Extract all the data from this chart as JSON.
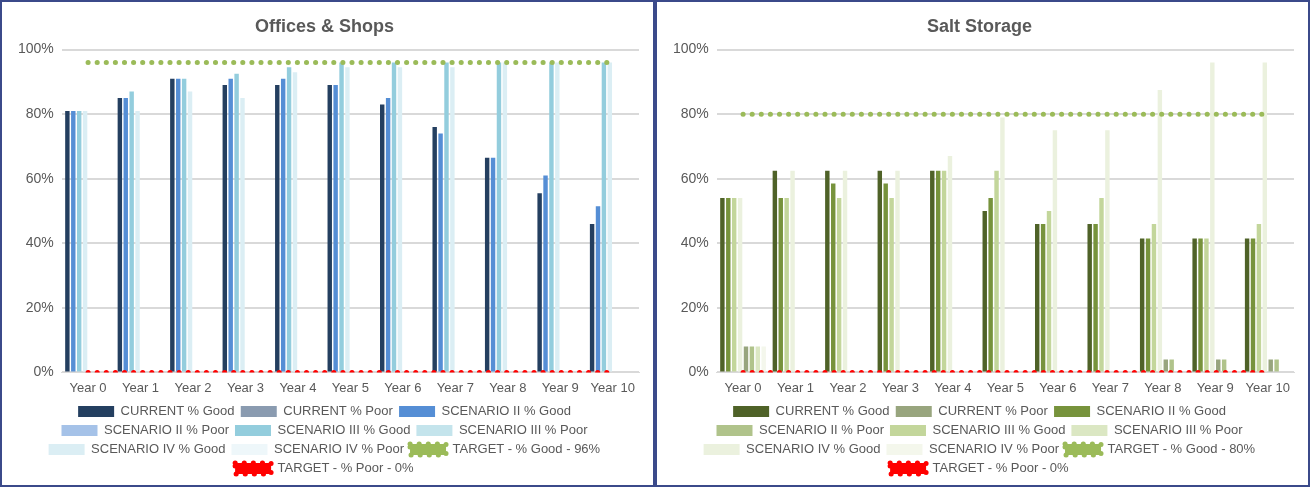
{
  "chart_data": [
    {
      "type": "bar",
      "title": "Offices & Shops",
      "categories": [
        "Year 0",
        "Year 1",
        "Year 2",
        "Year 3",
        "Year 4",
        "Year 5",
        "Year 6",
        "Year 7",
        "Year 8",
        "Year 9",
        "Year 10"
      ],
      "ylim": [
        0,
        100
      ],
      "yticks": [
        {
          "value": 0,
          "label": "0%"
        },
        {
          "value": 20,
          "label": "20%"
        },
        {
          "value": 40,
          "label": "40%"
        },
        {
          "value": 60,
          "label": "60%"
        },
        {
          "value": 80,
          "label": "80%"
        },
        {
          "value": 100,
          "label": "100%"
        }
      ],
      "grid": "y",
      "legend": "bottom",
      "series": [
        {
          "name": "CURRENT % Good",
          "color": "#243f60",
          "values": [
            81,
            85,
            91,
            89,
            89,
            89,
            83,
            76,
            66.5,
            55.5,
            46
          ]
        },
        {
          "name": "SCENARIO II % Good",
          "color": "#558ed5",
          "values": [
            81,
            85,
            91,
            91,
            91,
            89,
            85,
            74,
            66.5,
            61,
            51.5
          ]
        },
        {
          "name": "SCENARIO III % Good",
          "color": "#93cddd",
          "values": [
            81,
            87,
            91,
            92.5,
            94.5,
            96,
            96,
            96,
            96,
            96,
            96
          ]
        },
        {
          "name": "SCENARIO IV % Good",
          "color": "#dbeef4",
          "values": [
            81,
            81,
            87,
            85,
            93,
            94.5,
            94.5,
            94.5,
            96,
            96,
            96
          ]
        },
        {
          "name": "TARGET - % Good - 96%",
          "type": "line",
          "line_style": "dotted",
          "marker": "none",
          "color": "#9bbb59",
          "values": [
            96,
            96,
            96,
            96,
            96,
            96,
            96,
            96,
            96,
            96,
            96
          ]
        },
        {
          "name": "CURRENT % Poor",
          "color": "#8a9bb0",
          "values": [
            0,
            0,
            0,
            0,
            0,
            0,
            0,
            0,
            0,
            0,
            0
          ]
        },
        {
          "name": "SCENARIO II % Poor",
          "color": "#a5c2e8",
          "values": [
            0,
            0,
            0,
            0,
            0,
            0,
            0,
            0,
            0,
            0,
            0
          ]
        },
        {
          "name": "SCENARIO III % Poor",
          "color": "#c4e4ec",
          "values": [
            0,
            0,
            0,
            0,
            0,
            0,
            0,
            0,
            0,
            0,
            0
          ]
        },
        {
          "name": "SCENARIO IV % Poor",
          "color": "#eef7fa",
          "values": [
            0,
            0,
            0,
            0,
            0,
            0,
            0,
            0,
            0,
            0,
            0
          ]
        },
        {
          "name": "TARGET - % Poor - 0%",
          "type": "line",
          "line_style": "dotted",
          "marker": "none",
          "color": "#ff0000",
          "values": [
            0,
            0,
            0,
            0,
            0,
            0,
            0,
            0,
            0,
            0,
            0
          ]
        }
      ]
    },
    {
      "type": "bar",
      "title": "Salt Storage",
      "categories": [
        "Year 0",
        "Year 1",
        "Year 2",
        "Year 3",
        "Year 4",
        "Year 5",
        "Year 6",
        "Year 7",
        "Year 8",
        "Year 9",
        "Year 10"
      ],
      "ylim": [
        0,
        100
      ],
      "yticks": [
        {
          "value": 0,
          "label": "0%"
        },
        {
          "value": 20,
          "label": "20%"
        },
        {
          "value": 40,
          "label": "40%"
        },
        {
          "value": 60,
          "label": "60%"
        },
        {
          "value": 80,
          "label": "80%"
        },
        {
          "value": 100,
          "label": "100%"
        }
      ],
      "grid": "y",
      "legend": "bottom",
      "series": [
        {
          "name": "CURRENT % Good",
          "color": "#4f6228",
          "values": [
            54,
            62.5,
            62.5,
            62.5,
            62.5,
            50,
            46,
            46,
            41.5,
            41.5,
            41.5
          ]
        },
        {
          "name": "SCENARIO II % Good",
          "color": "#77933c",
          "values": [
            54,
            54,
            58.5,
            58.5,
            62.5,
            54,
            46,
            46,
            41.5,
            41.5,
            41.5
          ]
        },
        {
          "name": "SCENARIO III % Good",
          "color": "#c3d69b",
          "values": [
            54,
            54,
            54,
            54,
            62.5,
            62.5,
            50,
            54,
            46,
            41.5,
            46
          ]
        },
        {
          "name": "SCENARIO IV % Good",
          "color": "#ebf1de",
          "values": [
            54,
            62.5,
            62.5,
            62.5,
            67,
            79,
            75,
            75,
            87.5,
            96,
            96
          ]
        },
        {
          "name": "TARGET - % Good - 80%",
          "type": "line",
          "line_style": "dotted",
          "marker": "none",
          "color": "#9bbb59",
          "values": [
            80,
            80,
            80,
            80,
            80,
            80,
            80,
            80,
            80,
            80,
            80
          ]
        },
        {
          "name": "CURRENT % Poor",
          "color": "#98a57e",
          "values": [
            8,
            0,
            0,
            0,
            0,
            0,
            0,
            0,
            4,
            4,
            4
          ]
        },
        {
          "name": "SCENARIO II % Poor",
          "color": "#b0c38b",
          "values": [
            8,
            0,
            0,
            0,
            0,
            0,
            0,
            0,
            4,
            4,
            4
          ]
        },
        {
          "name": "SCENARIO III % Poor",
          "color": "#dbe7c3",
          "values": [
            8,
            0,
            0,
            0,
            0,
            0,
            0,
            0,
            0,
            0,
            0
          ]
        },
        {
          "name": "SCENARIO IV % Poor",
          "color": "#f4f7ec",
          "values": [
            8,
            0,
            0,
            0,
            0,
            0,
            0,
            0,
            0,
            0,
            0
          ]
        },
        {
          "name": "TARGET - % Poor - 0%",
          "type": "line",
          "line_style": "dotted",
          "marker": "none",
          "color": "#ff0000",
          "values": [
            0,
            0,
            0,
            0,
            0,
            0,
            0,
            0,
            0,
            0,
            0
          ]
        }
      ]
    }
  ]
}
